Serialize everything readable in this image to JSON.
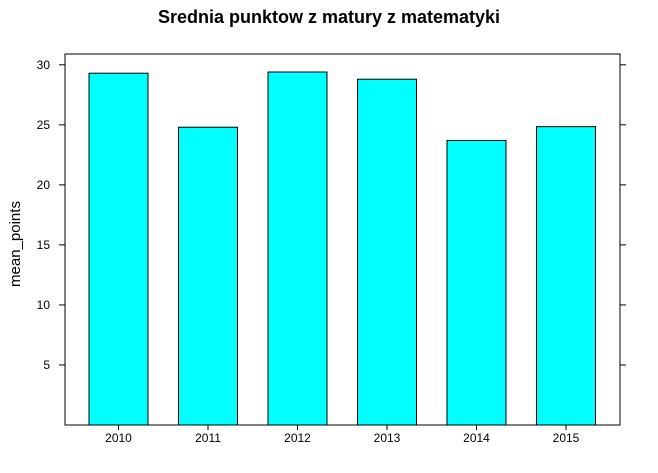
{
  "chart_data": {
    "type": "bar",
    "title": "Srednia punktow z matury z matematyki",
    "xlabel": "",
    "ylabel": "mean_points",
    "categories": [
      "2010",
      "2011",
      "2012",
      "2013",
      "2014",
      "2015"
    ],
    "values": [
      29.3,
      24.8,
      29.4,
      28.8,
      23.7,
      24.85
    ],
    "yticks": [
      5,
      10,
      15,
      20,
      25,
      30
    ],
    "ylim": [
      0,
      30.9
    ],
    "bar_color": "#00ffff",
    "grid": false,
    "legend": "none"
  }
}
